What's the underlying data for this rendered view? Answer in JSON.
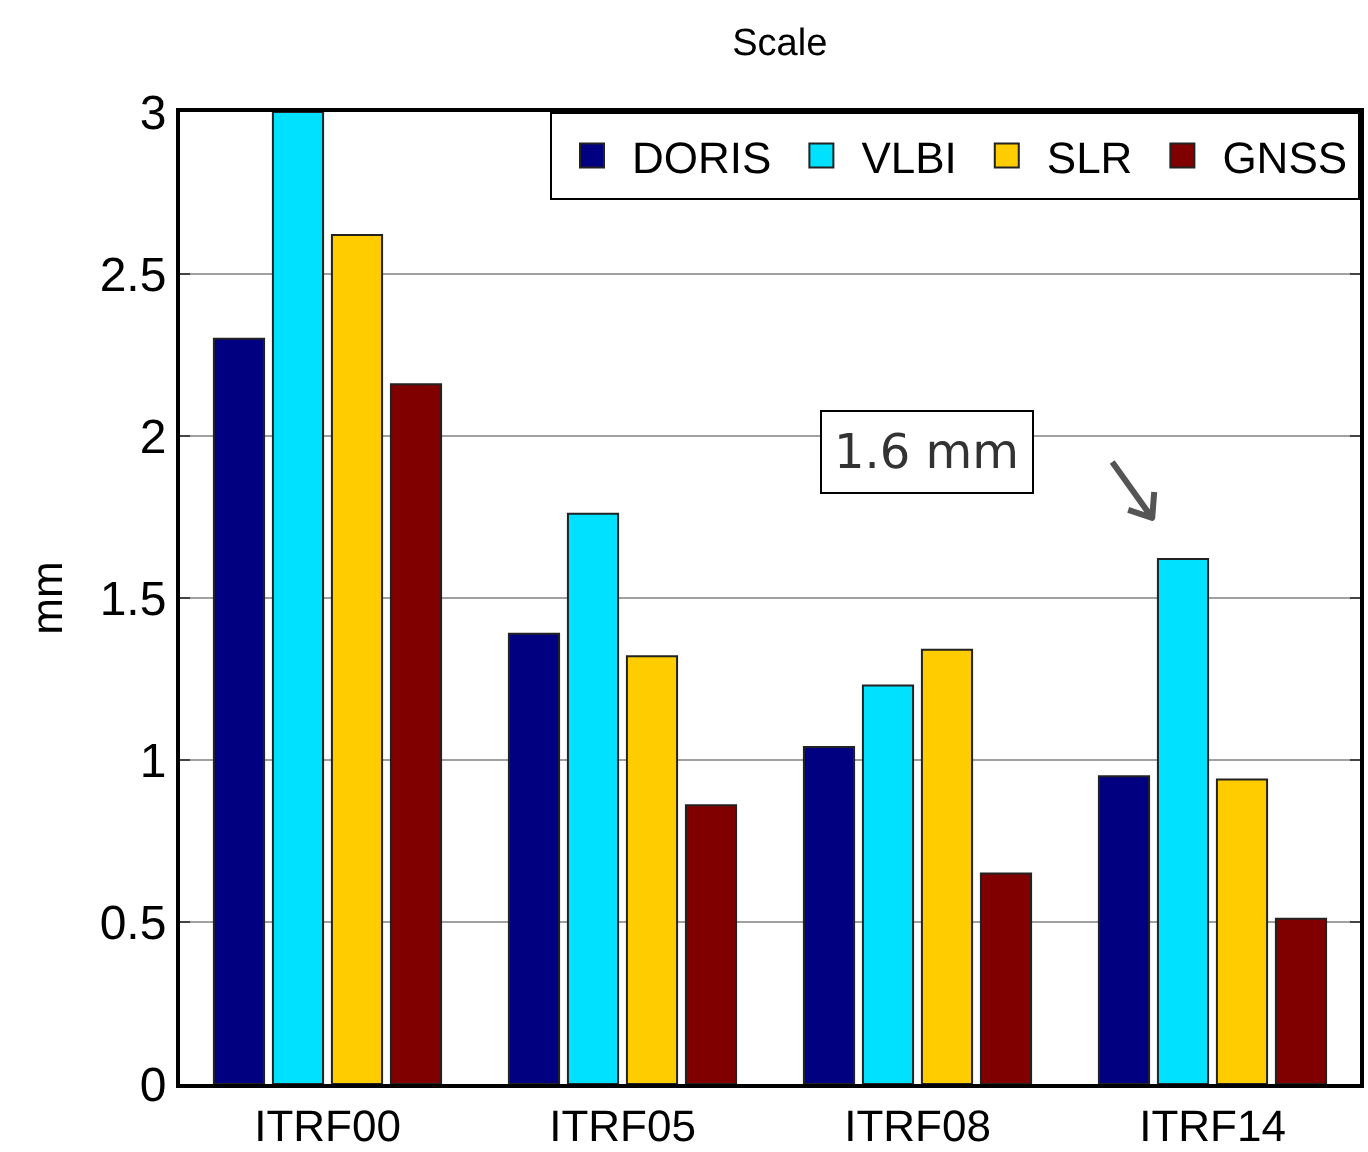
{
  "chart_data": {
    "type": "bar",
    "title": "Scale",
    "ylabel": "mm",
    "categories": [
      "ITRF00",
      "ITRF05",
      "ITRF08",
      "ITRF14"
    ],
    "series": [
      {
        "name": "DORIS",
        "color": "#000080",
        "values": [
          2.3,
          1.39,
          1.04,
          0.95
        ]
      },
      {
        "name": "VLBI",
        "color": "#00e0ff",
        "values": [
          3.0,
          1.76,
          1.23,
          1.62
        ]
      },
      {
        "name": "SLR",
        "color": "#ffcc00",
        "values": [
          2.62,
          1.32,
          1.34,
          0.94
        ]
      },
      {
        "name": "GNSS",
        "color": "#800000",
        "values": [
          2.16,
          0.86,
          0.65,
          0.51
        ]
      }
    ],
    "ylim": [
      0,
      3
    ],
    "yticks": [
      0,
      0.5,
      1,
      1.5,
      2,
      2.5,
      3
    ],
    "grid": "y",
    "legend": "top right",
    "annotations": [
      "1.6 mm"
    ]
  }
}
